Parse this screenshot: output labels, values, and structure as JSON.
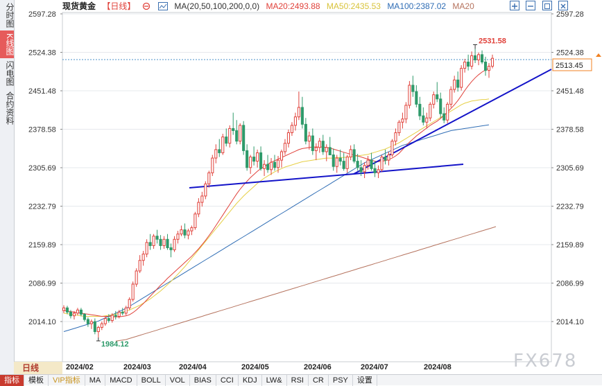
{
  "side_tabs": [
    {
      "label": "分时图",
      "active": false
    },
    {
      "label": "K线图",
      "active": true
    },
    {
      "label": "闪电图",
      "active": false
    },
    {
      "label": "合约资料",
      "active": false
    }
  ],
  "header": {
    "title": "现货黄金",
    "period": "【日线】",
    "ma_params": "MA(20,50,100,200,0,0)",
    "ma20": "MA20:2493.88",
    "ma50": "MA50:2435.53",
    "ma100": "MA100:2387.02",
    "ma200": "MA20"
  },
  "period_box": "日线",
  "bottom_tabs": [
    {
      "label": "指标",
      "active": true,
      "vip": false
    },
    {
      "label": "模板",
      "active": false,
      "vip": false
    },
    {
      "label": "VIP指标",
      "active": false,
      "vip": true
    },
    {
      "label": "MA",
      "active": false,
      "vip": false
    },
    {
      "label": "MACD",
      "active": false,
      "vip": false
    },
    {
      "label": "BOLL",
      "active": false,
      "vip": false
    },
    {
      "label": "VOL",
      "active": false,
      "vip": false
    },
    {
      "label": "BIAS",
      "active": false,
      "vip": false
    },
    {
      "label": "CCI",
      "active": false,
      "vip": false
    },
    {
      "label": "KDJ",
      "active": false,
      "vip": false
    },
    {
      "label": "LW&",
      "active": false,
      "vip": false
    },
    {
      "label": "RSI",
      "active": false,
      "vip": false
    },
    {
      "label": "CR",
      "active": false,
      "vip": false
    },
    {
      "label": "PSY",
      "active": false,
      "vip": false
    },
    {
      "label": "设置",
      "active": false,
      "vip": false
    }
  ],
  "watermark": "FX678",
  "colors": {
    "up": "#e0413a",
    "down": "#2e9a6a",
    "ma20": "#e0413a",
    "ma50": "#e6cf45",
    "ma100": "#2f6db5",
    "ma200": "#b5735e",
    "trend": "#1313c8",
    "grid": "#e6e8ec"
  },
  "chart_data": {
    "type": "candlestick",
    "y_ticks": [
      "2597.28",
      "2524.38",
      "2451.48",
      "2378.58",
      "2305.69",
      "2232.79",
      "2159.89",
      "2086.99",
      "2014.10"
    ],
    "ylim": [
      2014.1,
      2597.28
    ],
    "x_labels": [
      "2024/02",
      "2024/03",
      "2024/04",
      "2024/05",
      "2024/06",
      "2024/07",
      "2024/08"
    ],
    "last_price": "2513.45",
    "high_label": "2531.58",
    "low_label": "1984.12",
    "candles": [
      [
        2035,
        2045,
        2030,
        2040
      ],
      [
        2040,
        2044,
        2028,
        2032
      ],
      [
        2032,
        2036,
        2020,
        2025
      ],
      [
        2025,
        2034,
        2018,
        2030
      ],
      [
        2030,
        2040,
        2026,
        2036
      ],
      [
        2036,
        2040,
        2024,
        2028
      ],
      [
        2028,
        2030,
        2014,
        2018
      ],
      [
        2018,
        2022,
        2004,
        2010
      ],
      [
        2010,
        2018,
        2000,
        2014
      ],
      [
        2014,
        2020,
        1990,
        1995
      ],
      [
        1995,
        2006,
        1984,
        2003
      ],
      [
        2003,
        2014,
        1998,
        2010
      ],
      [
        2010,
        2024,
        2006,
        2020
      ],
      [
        2020,
        2028,
        2012,
        2016
      ],
      [
        2016,
        2030,
        2012,
        2026
      ],
      [
        2026,
        2034,
        2018,
        2024
      ],
      [
        2024,
        2036,
        2020,
        2032
      ],
      [
        2032,
        2040,
        2026,
        2030
      ],
      [
        2030,
        2044,
        2026,
        2040
      ],
      [
        2040,
        2060,
        2036,
        2056
      ],
      [
        2056,
        2090,
        2052,
        2085
      ],
      [
        2085,
        2115,
        2080,
        2110
      ],
      [
        2110,
        2140,
        2106,
        2130
      ],
      [
        2130,
        2148,
        2120,
        2142
      ],
      [
        2142,
        2170,
        2136,
        2164
      ],
      [
        2164,
        2180,
        2150,
        2158
      ],
      [
        2158,
        2180,
        2152,
        2176
      ],
      [
        2176,
        2188,
        2162,
        2170
      ],
      [
        2170,
        2178,
        2150,
        2158
      ],
      [
        2158,
        2176,
        2152,
        2170
      ],
      [
        2170,
        2180,
        2150,
        2154
      ],
      [
        2154,
        2162,
        2136,
        2150
      ],
      [
        2150,
        2176,
        2146,
        2170
      ],
      [
        2170,
        2186,
        2162,
        2180
      ],
      [
        2180,
        2196,
        2176,
        2188
      ],
      [
        2188,
        2200,
        2172,
        2178
      ],
      [
        2178,
        2190,
        2170,
        2186
      ],
      [
        2186,
        2196,
        2178,
        2192
      ],
      [
        2192,
        2222,
        2188,
        2218
      ],
      [
        2218,
        2248,
        2212,
        2240
      ],
      [
        2240,
        2260,
        2232,
        2252
      ],
      [
        2252,
        2280,
        2246,
        2275
      ],
      [
        2275,
        2300,
        2268,
        2296
      ],
      [
        2296,
        2330,
        2290,
        2324
      ],
      [
        2324,
        2350,
        2314,
        2340
      ],
      [
        2340,
        2360,
        2326,
        2334
      ],
      [
        2334,
        2370,
        2330,
        2364
      ],
      [
        2364,
        2380,
        2346,
        2352
      ],
      [
        2352,
        2386,
        2344,
        2380
      ],
      [
        2380,
        2410,
        2368,
        2376
      ],
      [
        2376,
        2396,
        2350,
        2356
      ],
      [
        2356,
        2390,
        2350,
        2386
      ],
      [
        2386,
        2394,
        2330,
        2338
      ],
      [
        2338,
        2350,
        2300,
        2306
      ],
      [
        2306,
        2330,
        2294,
        2326
      ],
      [
        2326,
        2346,
        2310,
        2318
      ],
      [
        2318,
        2340,
        2306,
        2334
      ],
      [
        2334,
        2346,
        2300,
        2304
      ],
      [
        2304,
        2320,
        2290,
        2312
      ],
      [
        2312,
        2330,
        2296,
        2302
      ],
      [
        2302,
        2324,
        2292,
        2316
      ],
      [
        2316,
        2330,
        2300,
        2306
      ],
      [
        2306,
        2328,
        2296,
        2320
      ],
      [
        2320,
        2340,
        2306,
        2336
      ],
      [
        2336,
        2360,
        2330,
        2352
      ],
      [
        2352,
        2378,
        2344,
        2372
      ],
      [
        2372,
        2392,
        2366,
        2386
      ],
      [
        2386,
        2410,
        2376,
        2402
      ],
      [
        2402,
        2450,
        2396,
        2420
      ],
      [
        2420,
        2440,
        2380,
        2388
      ],
      [
        2388,
        2400,
        2350,
        2356
      ],
      [
        2356,
        2374,
        2340,
        2366
      ],
      [
        2366,
        2380,
        2330,
        2338
      ],
      [
        2338,
        2352,
        2320,
        2344
      ],
      [
        2344,
        2362,
        2334,
        2356
      ],
      [
        2356,
        2368,
        2330,
        2336
      ],
      [
        2336,
        2350,
        2318,
        2344
      ],
      [
        2344,
        2364,
        2330,
        2330
      ],
      [
        2330,
        2342,
        2300,
        2308
      ],
      [
        2308,
        2330,
        2296,
        2324
      ],
      [
        2324,
        2340,
        2310,
        2318
      ],
      [
        2318,
        2334,
        2300,
        2304
      ],
      [
        2304,
        2330,
        2296,
        2326
      ],
      [
        2326,
        2348,
        2320,
        2340
      ],
      [
        2340,
        2350,
        2314,
        2318
      ],
      [
        2318,
        2332,
        2300,
        2306
      ],
      [
        2306,
        2320,
        2290,
        2298
      ],
      [
        2298,
        2316,
        2286,
        2310
      ],
      [
        2310,
        2328,
        2302,
        2320
      ],
      [
        2320,
        2334,
        2300,
        2304
      ],
      [
        2304,
        2318,
        2288,
        2296
      ],
      [
        2296,
        2310,
        2286,
        2302
      ],
      [
        2302,
        2330,
        2298,
        2326
      ],
      [
        2326,
        2340,
        2312,
        2320
      ],
      [
        2320,
        2336,
        2310,
        2330
      ],
      [
        2330,
        2360,
        2326,
        2356
      ],
      [
        2356,
        2380,
        2348,
        2372
      ],
      [
        2372,
        2396,
        2366,
        2392
      ],
      [
        2392,
        2410,
        2380,
        2398
      ],
      [
        2398,
        2430,
        2390,
        2424
      ],
      [
        2424,
        2470,
        2418,
        2462
      ],
      [
        2462,
        2480,
        2440,
        2450
      ],
      [
        2450,
        2462,
        2420,
        2426
      ],
      [
        2426,
        2440,
        2396,
        2404
      ],
      [
        2404,
        2420,
        2386,
        2392
      ],
      [
        2392,
        2410,
        2380,
        2400
      ],
      [
        2400,
        2430,
        2394,
        2426
      ],
      [
        2426,
        2450,
        2418,
        2444
      ],
      [
        2444,
        2468,
        2430,
        2436
      ],
      [
        2436,
        2448,
        2400,
        2408
      ],
      [
        2408,
        2420,
        2390,
        2396
      ],
      [
        2396,
        2430,
        2390,
        2426
      ],
      [
        2426,
        2460,
        2420,
        2454
      ],
      [
        2454,
        2480,
        2448,
        2472
      ],
      [
        2472,
        2488,
        2450,
        2458
      ],
      [
        2458,
        2500,
        2452,
        2494
      ],
      [
        2494,
        2512,
        2486,
        2506
      ],
      [
        2506,
        2520,
        2490,
        2498
      ],
      [
        2498,
        2526,
        2492,
        2518
      ],
      [
        2518,
        2531,
        2504,
        2510
      ],
      [
        2510,
        2524,
        2500,
        2520
      ],
      [
        2520,
        2528,
        2502,
        2506
      ],
      [
        2506,
        2516,
        2480,
        2490
      ],
      [
        2490,
        2504,
        2476,
        2498
      ],
      [
        2498,
        2520,
        2494,
        2513
      ]
    ],
    "ma20": [
      2035,
      2034,
      2033,
      2032,
      2031,
      2030,
      2029,
      2028,
      2027,
      2026,
      2025,
      2024,
      2024,
      2024,
      2023,
      2023,
      2023,
      2024,
      2025,
      2027,
      2031,
      2036,
      2042,
      2048,
      2055,
      2062,
      2069,
      2076,
      2083,
      2089,
      2096,
      2102,
      2108,
      2114,
      2120,
      2126,
      2132,
      2138,
      2145,
      2152,
      2160,
      2168,
      2177,
      2186,
      2196,
      2206,
      2216,
      2226,
      2236,
      2246,
      2256,
      2265,
      2273,
      2280,
      2287,
      2293,
      2299,
      2304,
      2308,
      2312,
      2316,
      2319,
      2322,
      2325,
      2328,
      2331,
      2334,
      2337,
      2340,
      2342,
      2343,
      2344,
      2345,
      2345,
      2345,
      2345,
      2344,
      2343,
      2341,
      2339,
      2337,
      2335,
      2333,
      2331,
      2330,
      2328,
      2326,
      2324,
      2322,
      2320,
      2318,
      2317,
      2318,
      2319,
      2321,
      2324,
      2328,
      2333,
      2340,
      2347,
      2354,
      2360,
      2366,
      2371,
      2376,
      2381,
      2386,
      2390,
      2394,
      2399,
      2405,
      2411,
      2418,
      2425,
      2433,
      2442,
      2452,
      2461,
      2469,
      2476,
      2482,
      2487,
      2491,
      2494
    ],
    "ma50": [
      2030,
      2029,
      2028,
      2027,
      2026,
      2025,
      2024,
      2024,
      2024,
      2024,
      2024,
      2024,
      2025,
      2026,
      2027,
      2028,
      2030,
      2032,
      2034,
      2036,
      2039,
      2042,
      2045,
      2049,
      2053,
      2057,
      2062,
      2067,
      2072,
      2078,
      2084,
      2090,
      2097,
      2104,
      2111,
      2118,
      2126,
      2134,
      2142,
      2150,
      2158,
      2166,
      2174,
      2182,
      2190,
      2198,
      2206,
      2214,
      2222,
      2230,
      2238,
      2245,
      2252,
      2258,
      2264,
      2270,
      2276,
      2281,
      2286,
      2290,
      2294,
      2298,
      2301,
      2304,
      2307,
      2309,
      2311,
      2313,
      2315,
      2317,
      2318,
      2319,
      2320,
      2321,
      2322,
      2323,
      2324,
      2324,
      2324,
      2325,
      2325,
      2325,
      2326,
      2326,
      2327,
      2328,
      2329,
      2330,
      2331,
      2333,
      2335,
      2337,
      2339,
      2341,
      2344,
      2347,
      2350,
      2353,
      2357,
      2361,
      2365,
      2369,
      2373,
      2377,
      2381,
      2385,
      2389,
      2393,
      2397,
      2401,
      2405,
      2409,
      2413,
      2417,
      2421,
      2425,
      2428,
      2430,
      2432,
      2433,
      2434,
      2435,
      2435,
      2436
    ],
    "ma100": [
      1995,
      1997,
      1999,
      2001,
      2003,
      2005,
      2007,
      2009,
      2011,
      2013,
      2015,
      2018,
      2021,
      2024,
      2027,
      2030,
      2033,
      2036,
      2039,
      2043,
      2047,
      2051,
      2055,
      2059,
      2063,
      2067,
      2071,
      2075,
      2079,
      2083,
      2087,
      2091,
      2095,
      2099,
      2103,
      2107,
      2111,
      2115,
      2119,
      2123,
      2127,
      2131,
      2135,
      2139,
      2143,
      2147,
      2151,
      2155,
      2159,
      2163,
      2167,
      2171,
      2175,
      2179,
      2183,
      2187,
      2191,
      2195,
      2199,
      2203,
      2207,
      2211,
      2215,
      2219,
      2223,
      2227,
      2231,
      2235,
      2239,
      2243,
      2247,
      2251,
      2255,
      2259,
      2263,
      2267,
      2271,
      2275,
      2279,
      2283,
      2287,
      2291,
      2295,
      2299,
      2303,
      2307,
      2311,
      2315,
      2318,
      2321,
      2324,
      2327,
      2330,
      2333,
      2336,
      2339,
      2342,
      2345,
      2348,
      2350,
      2352,
      2354,
      2356,
      2358,
      2360,
      2362,
      2364,
      2366,
      2368,
      2370,
      2372,
      2374,
      2376,
      2377,
      2378,
      2379,
      2380,
      2381,
      2382,
      2383,
      2384,
      2385,
      2386,
      2387
    ],
    "ma200_start": 15,
    "ma200": [
      1977,
      1978,
      1979,
      1980,
      1982,
      1984,
      1986,
      1988,
      1990,
      1992,
      1994,
      1996,
      1998,
      2000,
      2002,
      2004,
      2006,
      2008,
      2010,
      2012,
      2014,
      2016,
      2018,
      2020,
      2022,
      2024,
      2026,
      2028,
      2030,
      2032,
      2034,
      2036,
      2038,
      2040,
      2042,
      2044,
      2046,
      2048,
      2050,
      2052,
      2054,
      2056,
      2058,
      2060,
      2062,
      2064,
      2066,
      2068,
      2070,
      2072,
      2074,
      2076,
      2078,
      2080,
      2082,
      2084,
      2086,
      2088,
      2090,
      2092,
      2094,
      2096,
      2098,
      2100,
      2102,
      2104,
      2106,
      2108,
      2110,
      2112,
      2114,
      2116,
      2118,
      2120,
      2122,
      2124,
      2126,
      2128,
      2130,
      2132,
      2134,
      2136,
      2138,
      2140,
      2142,
      2144,
      2146,
      2148,
      2150,
      2152,
      2154,
      2156,
      2158,
      2160,
      2162,
      2164,
      2166,
      2168,
      2170,
      2172,
      2174,
      2176,
      2178,
      2180,
      2182,
      2184,
      2186,
      2188,
      2190,
      2192,
      2194
    ]
  }
}
